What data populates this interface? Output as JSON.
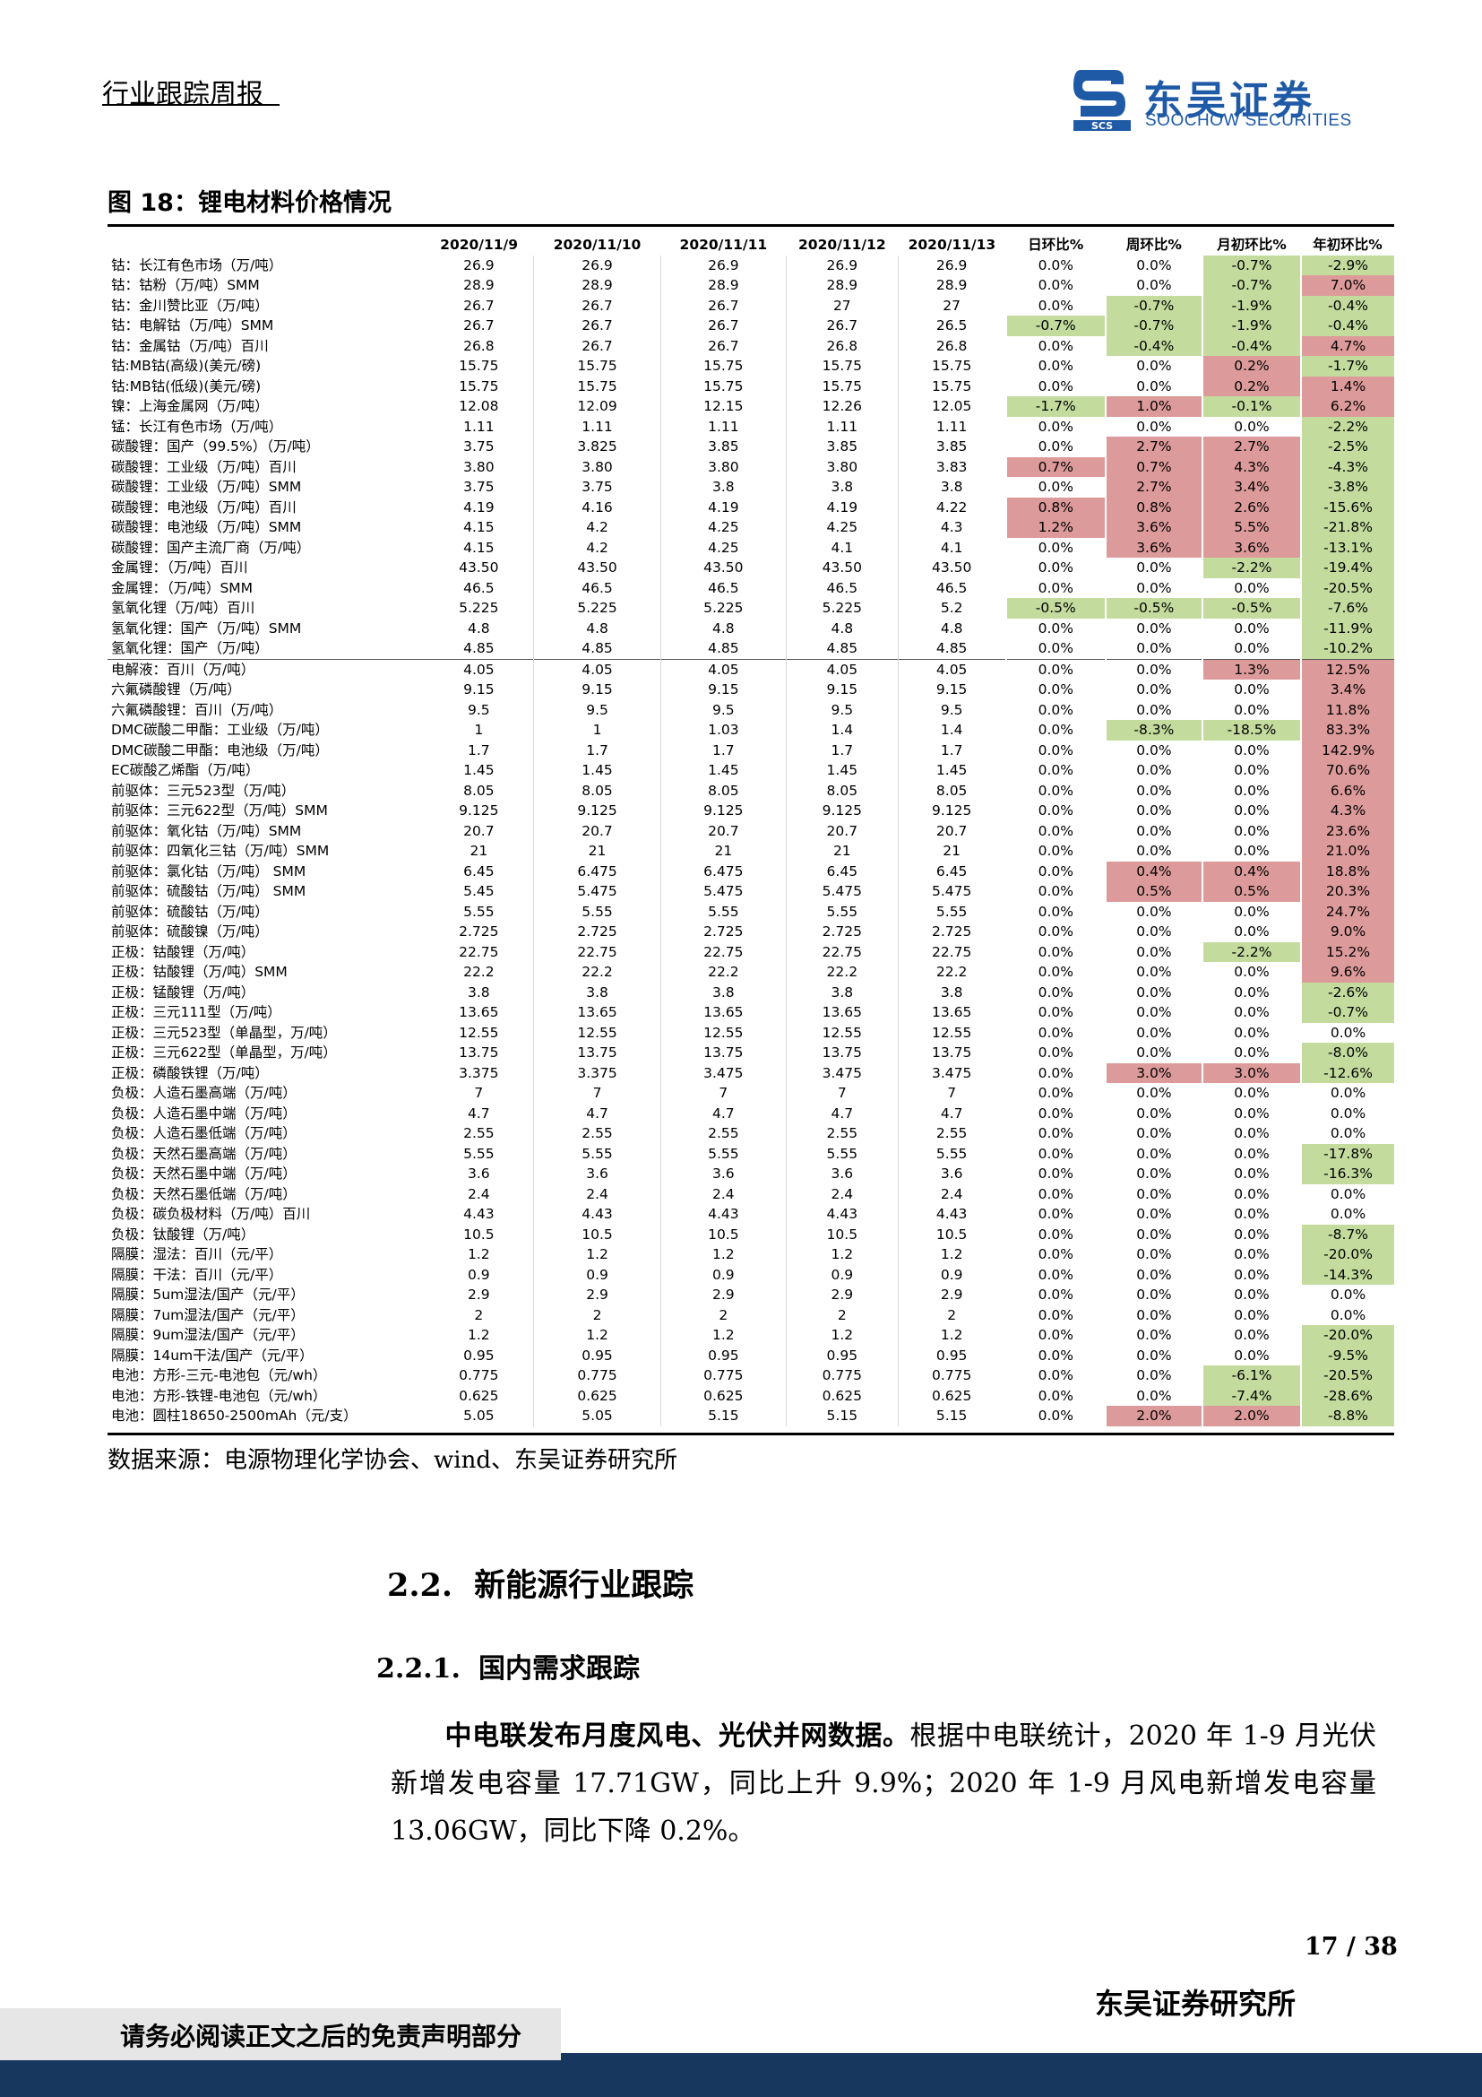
{
  "header": {
    "report_type": "行业跟踪周报",
    "logo_cn": "东吴证券",
    "logo_en": "SOOCHOW SECURITIES",
    "logo_mark": "SCS"
  },
  "figure": {
    "title": "图 18：锂电材料价格情况",
    "source": "数据来源：电源物理化学协会、wind、东吴证券研究所"
  },
  "table": {
    "headers": [
      "",
      "2020/11/9",
      "2020/11/10",
      "2020/11/11",
      "2020/11/12",
      "2020/11/13",
      "日环比%",
      "周环比%",
      "月初环比%",
      "年初环比%"
    ],
    "rows": [
      [
        "钴：长江有色市场（万/吨）",
        "26.9",
        "26.9",
        "26.9",
        "26.9",
        "26.9",
        "0.0%",
        "0.0%",
        "-0.7%",
        "-2.9%"
      ],
      [
        "钴：钴粉（万/吨）SMM",
        "28.9",
        "28.9",
        "28.9",
        "28.9",
        "28.9",
        "0.0%",
        "0.0%",
        "-0.7%",
        "7.0%"
      ],
      [
        "钴：金川赞比亚（万/吨）",
        "26.7",
        "26.7",
        "26.7",
        "27",
        "27",
        "0.0%",
        "-0.7%",
        "-1.9%",
        "-0.4%"
      ],
      [
        "钴：电解钴（万/吨）SMM",
        "26.7",
        "26.7",
        "26.7",
        "26.7",
        "26.5",
        "-0.7%",
        "-0.7%",
        "-1.9%",
        "-0.4%"
      ],
      [
        "钴：金属钴（万/吨）百川",
        "26.8",
        "26.7",
        "26.7",
        "26.8",
        "26.8",
        "0.0%",
        "-0.4%",
        "-0.4%",
        "4.7%"
      ],
      [
        "钴:MB钴(高级)(美元/磅)",
        "15.75",
        "15.75",
        "15.75",
        "15.75",
        "15.75",
        "0.0%",
        "0.0%",
        "0.2%",
        "-1.7%"
      ],
      [
        "钴:MB钴(低级)(美元/磅)",
        "15.75",
        "15.75",
        "15.75",
        "15.75",
        "15.75",
        "0.0%",
        "0.0%",
        "0.2%",
        "1.4%"
      ],
      [
        "镍：上海金属网（万/吨）",
        "12.08",
        "12.09",
        "12.15",
        "12.26",
        "12.05",
        "-1.7%",
        "1.0%",
        "-0.1%",
        "6.2%"
      ],
      [
        "锰：长江有色市场（万/吨）",
        "1.11",
        "1.11",
        "1.11",
        "1.11",
        "1.11",
        "0.0%",
        "0.0%",
        "0.0%",
        "-2.2%"
      ],
      [
        "碳酸锂：国产（99.5%）（万/吨）",
        "3.75",
        "3.825",
        "3.85",
        "3.85",
        "3.85",
        "0.0%",
        "2.7%",
        "2.7%",
        "-2.5%"
      ],
      [
        "碳酸锂：工业级（万/吨）百川",
        "3.80",
        "3.80",
        "3.80",
        "3.80",
        "3.83",
        "0.7%",
        "0.7%",
        "4.3%",
        "-4.3%"
      ],
      [
        "碳酸锂：工业级（万/吨）SMM",
        "3.75",
        "3.75",
        "3.8",
        "3.8",
        "3.8",
        "0.0%",
        "2.7%",
        "3.4%",
        "-3.8%"
      ],
      [
        "碳酸锂：电池级（万/吨）百川",
        "4.19",
        "4.16",
        "4.19",
        "4.19",
        "4.22",
        "0.8%",
        "0.8%",
        "2.6%",
        "-15.6%"
      ],
      [
        "碳酸锂：电池级（万/吨）SMM",
        "4.15",
        "4.2",
        "4.25",
        "4.25",
        "4.3",
        "1.2%",
        "3.6%",
        "5.5%",
        "-21.8%"
      ],
      [
        "碳酸锂：国产主流厂商（万/吨）",
        "4.15",
        "4.2",
        "4.25",
        "4.1",
        "4.1",
        "0.0%",
        "3.6%",
        "3.6%",
        "-13.1%"
      ],
      [
        "金属锂：（万/吨）百川",
        "43.50",
        "43.50",
        "43.50",
        "43.50",
        "43.50",
        "0.0%",
        "0.0%",
        "-2.2%",
        "-19.4%"
      ],
      [
        "金属锂：（万/吨）SMM",
        "46.5",
        "46.5",
        "46.5",
        "46.5",
        "46.5",
        "0.0%",
        "0.0%",
        "0.0%",
        "-20.5%"
      ],
      [
        "氢氧化锂（万/吨）百川",
        "5.225",
        "5.225",
        "5.225",
        "5.225",
        "5.2",
        "-0.5%",
        "-0.5%",
        "-0.5%",
        "-7.6%"
      ],
      [
        "氢氧化锂：国产（万/吨）SMM",
        "4.8",
        "4.8",
        "4.8",
        "4.8",
        "4.8",
        "0.0%",
        "0.0%",
        "0.0%",
        "-11.9%"
      ],
      [
        "氢氧化锂：国产（万/吨）",
        "4.85",
        "4.85",
        "4.85",
        "4.85",
        "4.85",
        "0.0%",
        "0.0%",
        "0.0%",
        "-10.2%"
      ],
      [
        "电解液：百川（万/吨）",
        "4.05",
        "4.05",
        "4.05",
        "4.05",
        "4.05",
        "0.0%",
        "0.0%",
        "1.3%",
        "12.5%"
      ],
      [
        "六氟磷酸锂（万/吨）",
        "9.15",
        "9.15",
        "9.15",
        "9.15",
        "9.15",
        "0.0%",
        "0.0%",
        "0.0%",
        "3.4%"
      ],
      [
        "六氟磷酸锂：百川（万/吨）",
        "9.5",
        "9.5",
        "9.5",
        "9.5",
        "9.5",
        "0.0%",
        "0.0%",
        "0.0%",
        "11.8%"
      ],
      [
        "DMC碳酸二甲酯：工业级（万/吨）",
        "1",
        "1",
        "1.03",
        "1.4",
        "1.4",
        "0.0%",
        "-8.3%",
        "-18.5%",
        "83.3%"
      ],
      [
        "DMC碳酸二甲酯：电池级（万/吨）",
        "1.7",
        "1.7",
        "1.7",
        "1.7",
        "1.7",
        "0.0%",
        "0.0%",
        "0.0%",
        "142.9%"
      ],
      [
        "EC碳酸乙烯酯（万/吨）",
        "1.45",
        "1.45",
        "1.45",
        "1.45",
        "1.45",
        "0.0%",
        "0.0%",
        "0.0%",
        "70.6%"
      ],
      [
        "前驱体：三元523型（万/吨）",
        "8.05",
        "8.05",
        "8.05",
        "8.05",
        "8.05",
        "0.0%",
        "0.0%",
        "0.0%",
        "6.6%"
      ],
      [
        "前驱体：三元622型（万/吨）SMM",
        "9.125",
        "9.125",
        "9.125",
        "9.125",
        "9.125",
        "0.0%",
        "0.0%",
        "0.0%",
        "4.3%"
      ],
      [
        "前驱体：氧化钴（万/吨）SMM",
        "20.7",
        "20.7",
        "20.7",
        "20.7",
        "20.7",
        "0.0%",
        "0.0%",
        "0.0%",
        "23.6%"
      ],
      [
        "前驱体：四氧化三钴（万/吨）SMM",
        "21",
        "21",
        "21",
        "21",
        "21",
        "0.0%",
        "0.0%",
        "0.0%",
        "21.0%"
      ],
      [
        "前驱体：氯化钴（万/吨） SMM",
        "6.45",
        "6.475",
        "6.475",
        "6.45",
        "6.45",
        "0.0%",
        "0.4%",
        "0.4%",
        "18.8%"
      ],
      [
        "前驱体：硫酸钴（万/吨） SMM",
        "5.45",
        "5.475",
        "5.475",
        "5.475",
        "5.475",
        "0.0%",
        "0.5%",
        "0.5%",
        "20.3%"
      ],
      [
        "前驱体：硫酸钴（万/吨）",
        "5.55",
        "5.55",
        "5.55",
        "5.55",
        "5.55",
        "0.0%",
        "0.0%",
        "0.0%",
        "24.7%"
      ],
      [
        "前驱体：硫酸镍（万/吨）",
        "2.725",
        "2.725",
        "2.725",
        "2.725",
        "2.725",
        "0.0%",
        "0.0%",
        "0.0%",
        "9.0%"
      ],
      [
        "正极：钴酸锂（万/吨）",
        "22.75",
        "22.75",
        "22.75",
        "22.75",
        "22.75",
        "0.0%",
        "0.0%",
        "-2.2%",
        "15.2%"
      ],
      [
        "正极：钴酸锂（万/吨）SMM",
        "22.2",
        "22.2",
        "22.2",
        "22.2",
        "22.2",
        "0.0%",
        "0.0%",
        "0.0%",
        "9.6%"
      ],
      [
        "正极：锰酸锂（万/吨）",
        "3.8",
        "3.8",
        "3.8",
        "3.8",
        "3.8",
        "0.0%",
        "0.0%",
        "0.0%",
        "-2.6%"
      ],
      [
        "正极：三元111型（万/吨）",
        "13.65",
        "13.65",
        "13.65",
        "13.65",
        "13.65",
        "0.0%",
        "0.0%",
        "0.0%",
        "-0.7%"
      ],
      [
        "正极：三元523型（单晶型，万/吨）",
        "12.55",
        "12.55",
        "12.55",
        "12.55",
        "12.55",
        "0.0%",
        "0.0%",
        "0.0%",
        "0.0%"
      ],
      [
        "正极：三元622型（单晶型，万/吨）",
        "13.75",
        "13.75",
        "13.75",
        "13.75",
        "13.75",
        "0.0%",
        "0.0%",
        "0.0%",
        "-8.0%"
      ],
      [
        "正极：磷酸铁锂（万/吨）",
        "3.375",
        "3.375",
        "3.475",
        "3.475",
        "3.475",
        "0.0%",
        "3.0%",
        "3.0%",
        "-12.6%"
      ],
      [
        "负极：人造石墨高端（万/吨）",
        "7",
        "7",
        "7",
        "7",
        "7",
        "0.0%",
        "0.0%",
        "0.0%",
        "0.0%"
      ],
      [
        "负极：人造石墨中端（万/吨）",
        "4.7",
        "4.7",
        "4.7",
        "4.7",
        "4.7",
        "0.0%",
        "0.0%",
        "0.0%",
        "0.0%"
      ],
      [
        "负极：人造石墨低端（万/吨）",
        "2.55",
        "2.55",
        "2.55",
        "2.55",
        "2.55",
        "0.0%",
        "0.0%",
        "0.0%",
        "0.0%"
      ],
      [
        "负极：天然石墨高端（万/吨）",
        "5.55",
        "5.55",
        "5.55",
        "5.55",
        "5.55",
        "0.0%",
        "0.0%",
        "0.0%",
        "-17.8%"
      ],
      [
        "负极：天然石墨中端（万/吨）",
        "3.6",
        "3.6",
        "3.6",
        "3.6",
        "3.6",
        "0.0%",
        "0.0%",
        "0.0%",
        "-16.3%"
      ],
      [
        "负极：天然石墨低端（万/吨）",
        "2.4",
        "2.4",
        "2.4",
        "2.4",
        "2.4",
        "0.0%",
        "0.0%",
        "0.0%",
        "0.0%"
      ],
      [
        "负极：碳负极材料（万/吨）百川",
        "4.43",
        "4.43",
        "4.43",
        "4.43",
        "4.43",
        "0.0%",
        "0.0%",
        "0.0%",
        "0.0%"
      ],
      [
        "负极：钛酸锂（万/吨）",
        "10.5",
        "10.5",
        "10.5",
        "10.5",
        "10.5",
        "0.0%",
        "0.0%",
        "0.0%",
        "-8.7%"
      ],
      [
        "隔膜：湿法：百川（元/平）",
        "1.2",
        "1.2",
        "1.2",
        "1.2",
        "1.2",
        "0.0%",
        "0.0%",
        "0.0%",
        "-20.0%"
      ],
      [
        "隔膜：干法：百川（元/平）",
        "0.9",
        "0.9",
        "0.9",
        "0.9",
        "0.9",
        "0.0%",
        "0.0%",
        "0.0%",
        "-14.3%"
      ],
      [
        "隔膜：5um湿法/国产（元/平）",
        "2.9",
        "2.9",
        "2.9",
        "2.9",
        "2.9",
        "0.0%",
        "0.0%",
        "0.0%",
        "0.0%"
      ],
      [
        "隔膜：7um湿法/国产（元/平）",
        "2",
        "2",
        "2",
        "2",
        "2",
        "0.0%",
        "0.0%",
        "0.0%",
        "0.0%"
      ],
      [
        "隔膜：9um湿法/国产（元/平）",
        "1.2",
        "1.2",
        "1.2",
        "1.2",
        "1.2",
        "0.0%",
        "0.0%",
        "0.0%",
        "-20.0%"
      ],
      [
        "隔膜：14um干法/国产（元/平）",
        "0.95",
        "0.95",
        "0.95",
        "0.95",
        "0.95",
        "0.0%",
        "0.0%",
        "0.0%",
        "-9.5%"
      ],
      [
        "电池：方形-三元-电池包（元/wh）",
        "0.775",
        "0.775",
        "0.775",
        "0.775",
        "0.775",
        "0.0%",
        "0.0%",
        "-6.1%",
        "-20.5%"
      ],
      [
        "电池：方形-铁锂-电池包（元/wh）",
        "0.625",
        "0.625",
        "0.625",
        "0.625",
        "0.625",
        "0.0%",
        "0.0%",
        "-7.4%",
        "-28.6%"
      ],
      [
        "电池：圆柱18650-2500mAh（元/支）",
        "5.05",
        "5.05",
        "5.15",
        "5.15",
        "5.15",
        "0.0%",
        "2.0%",
        "2.0%",
        "-8.8%"
      ]
    ],
    "group_starts": [
      20
    ]
  },
  "section": {
    "h2_num": "2.2.",
    "h2_text": "新能源行业跟踪",
    "h3_num": "2.2.1.",
    "h3_text": "国内需求跟踪",
    "para_bold": "中电联发布月度风电、光伏并网数据。",
    "para_text": "根据中电联统计，2020 年 1-9 月光伏新增发电容量 17.71GW，同比上升 9.9%；2020 年 1-9 月风电新增发电容量 13.06GW，同比下降 0.2%。"
  },
  "footer": {
    "page": "17 / 38",
    "institute": "东吴证券研究所",
    "disclaimer": "请务必阅读正文之后的免责声明部分"
  },
  "colors": {
    "positive_bg": "#dd9a9a",
    "negative_bg": "#c3dc9e",
    "brand": "#1f5aa6",
    "footer_bar": "#17375e"
  }
}
